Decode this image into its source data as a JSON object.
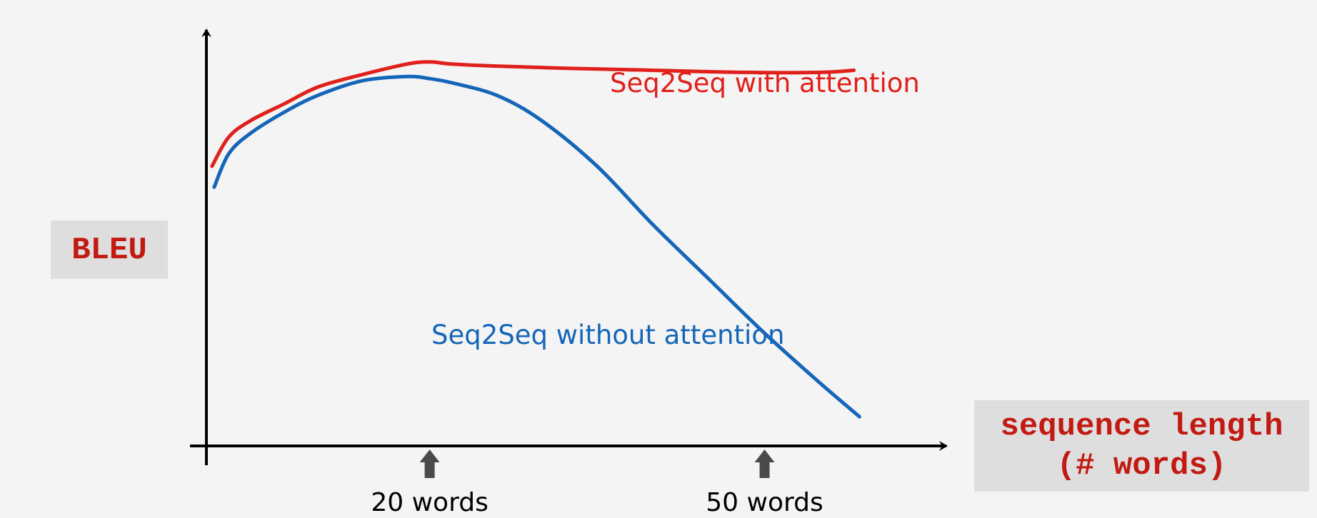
{
  "chart_data": {
    "type": "line",
    "ylabel": "BLEU",
    "xlabel": "sequence length (# words)",
    "xlabel_lines": [
      "sequence length",
      "(# words)"
    ],
    "x_markers": [
      {
        "value": 20,
        "label": "20 words"
      },
      {
        "value": 50,
        "label": "50 words"
      }
    ],
    "xlim": [
      0,
      65
    ],
    "ylim": [
      0,
      100
    ],
    "grid": false,
    "legend": "inline labels",
    "series": [
      {
        "name": "Seq2Seq with attention",
        "color": "#e0201a",
        "x": [
          0.5,
          2,
          4,
          7,
          10,
          14,
          18,
          20,
          22,
          26,
          32,
          40,
          48,
          55,
          58
        ],
        "y": [
          67,
          74,
          78,
          82,
          86,
          89,
          91.5,
          92,
          91.5,
          91,
          90.5,
          90,
          89.5,
          89.5,
          90
        ]
      },
      {
        "name": "Seq2Seq without attention",
        "color": "#1566b8",
        "x": [
          0.7,
          2,
          4,
          7,
          10,
          14,
          18,
          20,
          22,
          26,
          30,
          35,
          40,
          45,
          50,
          55,
          58.5
        ],
        "y": [
          62,
          70,
          75,
          80,
          84,
          87.5,
          88.5,
          88,
          87,
          84,
          78,
          67,
          53,
          40,
          27,
          15,
          7
        ]
      }
    ]
  }
}
